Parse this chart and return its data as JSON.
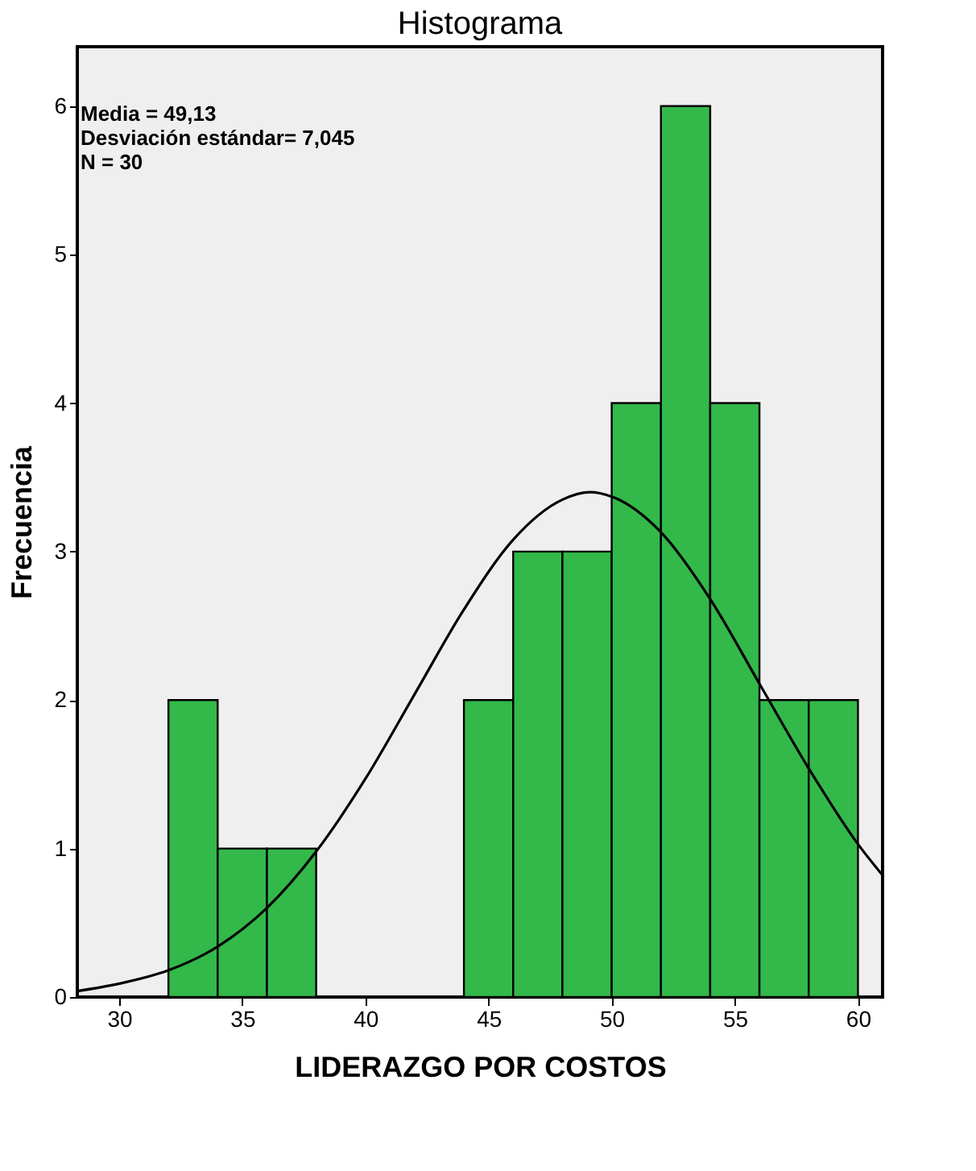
{
  "chart_data": {
    "type": "histogram",
    "title": "Histograma",
    "xlabel": "LIDERAZGO POR COSTOS",
    "ylabel": "Frecuencia",
    "bins": [
      32,
      34,
      36,
      38,
      40,
      42,
      44,
      46,
      48,
      50,
      52,
      54,
      56,
      58,
      60
    ],
    "values": [
      2,
      1,
      1,
      0,
      0,
      0,
      2,
      3,
      3,
      4,
      6,
      4,
      2,
      2
    ],
    "color": "#33b84a",
    "series": [
      {
        "type": "line",
        "color": "#000000",
        "x": [
          28.3,
          30,
          32,
          34,
          36,
          38,
          40,
          42,
          44,
          46,
          48,
          49.13,
          50,
          52,
          54,
          56,
          58,
          60,
          61
        ],
        "values": [
          0.04,
          0.09,
          0.18,
          0.34,
          0.6,
          0.98,
          1.47,
          2.04,
          2.61,
          3.08,
          3.35,
          3.4,
          3.37,
          3.13,
          2.68,
          2.11,
          1.54,
          1.03,
          0.82
        ]
      }
    ],
    "xlim": [
      28.3,
      61
    ],
    "xticks": [
      30,
      35,
      40,
      45,
      50,
      55,
      60
    ],
    "ylim": [
      0,
      6.4
    ],
    "yticks": [
      0,
      1,
      2,
      3,
      4,
      5,
      6
    ],
    "grid": false,
    "annotations": [
      "Media = 49,13",
      "Desviación estándar= 7,045",
      "N = 30"
    ]
  }
}
